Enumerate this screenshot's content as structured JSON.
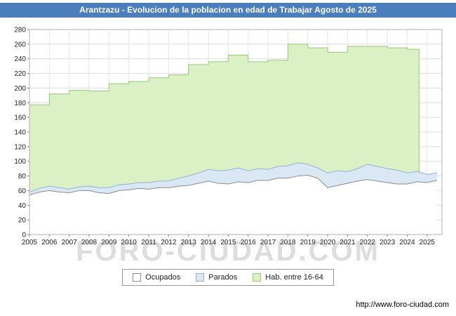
{
  "colors": {
    "title_bar_bg": "#4a7ebd",
    "title_bar_fg": "#ffffff",
    "plot_border": "#b0b0b0",
    "gridline": "#dcdcdc",
    "vgridline": "#e6e6e6",
    "axis_text": "#222222"
  },
  "watermark": "FORO-CIUDAD.COM",
  "footer": {
    "url": "http://www.foro-ciudad.com"
  },
  "legend": [
    {
      "label": "Ocupados",
      "fill": "#ffffff",
      "stroke": "#8a8a8a"
    },
    {
      "label": "Parados",
      "fill": "#dae8f6",
      "stroke": "#8fb2d6"
    },
    {
      "label": "Hab. entre 16-64",
      "fill": "#dcf0c6",
      "stroke": "#97c878"
    }
  ],
  "chart_data": {
    "type": "area",
    "title": "Arantzazu - Evolucion de la poblacion en edad de Trabajar Agosto de 2025",
    "ylim": [
      0,
      280
    ],
    "ytick_step": 20,
    "x_start": 2005,
    "x_end": 2025.75,
    "x_labels": [
      "2005",
      "2006",
      "2007",
      "2008",
      "2009",
      "2010",
      "2011",
      "2012",
      "2013",
      "2014",
      "2015",
      "2016",
      "2017",
      "2018",
      "2019",
      "2020",
      "2021",
      "2022",
      "2023",
      "2024",
      "2025"
    ],
    "grid": true,
    "legend_position": "bottom",
    "series": [
      {
        "name": "Hab. entre 16-64",
        "type": "step-area",
        "fill": "#dcf0c6",
        "stroke": "#97c878",
        "x_years": [
          2005,
          2006,
          2007,
          2008,
          2009,
          2010,
          2011,
          2012,
          2013,
          2014,
          2015,
          2016,
          2017,
          2018,
          2019,
          2020,
          2021,
          2022,
          2023,
          2024
        ],
        "values": [
          177,
          192,
          197,
          196,
          206,
          209,
          214,
          218,
          232,
          236,
          245,
          236,
          238,
          260,
          255,
          249,
          257,
          257,
          255,
          253
        ],
        "x_cutoff": 2024.6
      },
      {
        "name": "Parados",
        "type": "area",
        "fill": "#dae8f6",
        "stroke": "#8fb2d6",
        "x_first": 2005,
        "x_step": 0.5,
        "values": [
          58,
          63,
          66,
          64,
          62,
          65,
          66,
          64,
          64,
          68,
          69,
          71,
          71,
          73,
          73,
          77,
          80,
          84,
          89,
          87,
          88,
          91,
          87,
          90,
          89,
          93,
          94,
          98,
          96,
          91,
          84,
          87,
          86,
          90,
          96,
          93,
          90,
          88,
          84,
          86,
          82,
          84
        ]
      },
      {
        "name": "Ocupados",
        "type": "area",
        "fill": "#ffffff",
        "stroke": "#8a8a8a",
        "x_first": 2005,
        "x_step": 0.5,
        "values": [
          54,
          58,
          60,
          58,
          57,
          60,
          60,
          57,
          56,
          60,
          61,
          63,
          62,
          64,
          64,
          66,
          67,
          70,
          73,
          70,
          69,
          72,
          71,
          74,
          74,
          77,
          77,
          80,
          81,
          77,
          64,
          67,
          70,
          73,
          75,
          73,
          71,
          69,
          69,
          72,
          71,
          74
        ]
      }
    ]
  }
}
